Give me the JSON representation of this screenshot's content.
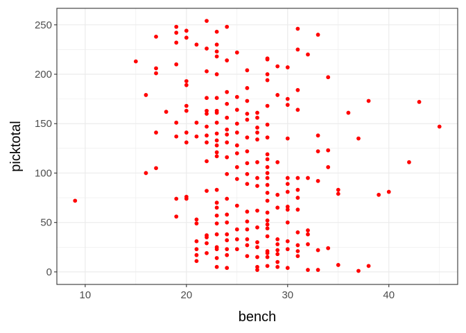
{
  "chart_data": {
    "type": "scatter",
    "xlabel": "bench",
    "ylabel": "picktotal",
    "xlim": [
      7.2,
      46.8
    ],
    "ylim": [
      -12.7,
      266.7
    ],
    "x_ticks": [
      10,
      20,
      30,
      40
    ],
    "y_ticks": [
      0,
      50,
      100,
      150,
      200,
      250
    ],
    "x_tick_labels": [
      "10",
      "20",
      "30",
      "40"
    ],
    "y_tick_labels": [
      "0",
      "50",
      "100",
      "150",
      "200",
      "250"
    ],
    "grid": true,
    "point_color": "#ff0000",
    "points": [
      [
        9,
        72
      ],
      [
        15,
        213
      ],
      [
        16,
        179
      ],
      [
        16,
        100
      ],
      [
        17,
        238
      ],
      [
        17,
        206
      ],
      [
        17,
        201
      ],
      [
        17,
        141
      ],
      [
        17,
        105
      ],
      [
        18,
        162
      ],
      [
        19,
        248
      ],
      [
        19,
        242
      ],
      [
        19,
        232
      ],
      [
        19,
        210
      ],
      [
        19,
        151
      ],
      [
        19,
        137
      ],
      [
        19,
        74
      ],
      [
        19,
        56
      ],
      [
        20,
        244
      ],
      [
        20,
        237
      ],
      [
        20,
        193
      ],
      [
        20,
        189
      ],
      [
        20,
        168
      ],
      [
        20,
        163
      ],
      [
        20,
        141
      ],
      [
        20,
        131
      ],
      [
        20,
        76
      ],
      [
        20,
        74
      ],
      [
        21,
        230
      ],
      [
        21,
        151
      ],
      [
        21,
        137
      ],
      [
        21,
        53
      ],
      [
        21,
        49
      ],
      [
        21,
        31
      ],
      [
        21,
        23
      ],
      [
        21,
        17
      ],
      [
        21,
        11
      ],
      [
        22,
        254
      ],
      [
        22,
        226
      ],
      [
        22,
        203
      ],
      [
        22,
        176
      ],
      [
        22,
        163
      ],
      [
        22,
        160
      ],
      [
        22,
        147
      ],
      [
        22,
        138
      ],
      [
        22,
        131
      ],
      [
        22,
        112
      ],
      [
        22,
        82
      ],
      [
        22,
        37
      ],
      [
        22,
        35
      ],
      [
        22,
        29
      ],
      [
        22,
        19
      ],
      [
        23,
        243
      ],
      [
        23,
        230
      ],
      [
        23,
        223
      ],
      [
        23,
        218
      ],
      [
        23,
        200
      ],
      [
        23,
        176
      ],
      [
        23,
        163
      ],
      [
        23,
        161
      ],
      [
        23,
        151
      ],
      [
        23,
        140
      ],
      [
        23,
        133
      ],
      [
        23,
        128
      ],
      [
        23,
        121
      ],
      [
        23,
        117
      ],
      [
        23,
        83
      ],
      [
        23,
        70
      ],
      [
        23,
        65
      ],
      [
        23,
        57
      ],
      [
        23,
        49
      ],
      [
        23,
        38
      ],
      [
        23,
        25
      ],
      [
        23,
        23
      ],
      [
        23,
        14
      ],
      [
        23,
        5
      ],
      [
        24,
        248
      ],
      [
        24,
        214
      ],
      [
        24,
        182
      ],
      [
        24,
        170
      ],
      [
        24,
        156
      ],
      [
        24,
        144
      ],
      [
        24,
        139
      ],
      [
        24,
        131
      ],
      [
        24,
        116
      ],
      [
        24,
        99
      ],
      [
        24,
        74
      ],
      [
        24,
        58
      ],
      [
        24,
        50
      ],
      [
        24,
        38
      ],
      [
        24,
        32
      ],
      [
        24,
        23
      ],
      [
        24,
        17
      ],
      [
        24,
        4
      ],
      [
        25,
        222
      ],
      [
        25,
        177
      ],
      [
        25,
        164
      ],
      [
        25,
        150
      ],
      [
        25,
        141
      ],
      [
        25,
        128
      ],
      [
        25,
        120
      ],
      [
        25,
        106
      ],
      [
        25,
        94
      ],
      [
        25,
        67
      ],
      [
        25,
        43
      ],
      [
        25,
        33
      ],
      [
        25,
        23
      ],
      [
        26,
        204
      ],
      [
        26,
        186
      ],
      [
        26,
        173
      ],
      [
        26,
        160
      ],
      [
        26,
        154
      ],
      [
        26,
        136
      ],
      [
        26,
        122
      ],
      [
        26,
        110
      ],
      [
        26,
        99
      ],
      [
        26,
        89
      ],
      [
        26,
        61
      ],
      [
        26,
        51
      ],
      [
        26,
        43
      ],
      [
        26,
        33
      ],
      [
        26,
        27
      ],
      [
        26,
        16
      ],
      [
        27,
        161
      ],
      [
        27,
        156
      ],
      [
        27,
        146
      ],
      [
        27,
        141
      ],
      [
        27,
        134
      ],
      [
        27,
        111
      ],
      [
        27,
        95
      ],
      [
        27,
        87
      ],
      [
        27,
        62
      ],
      [
        27,
        45
      ],
      [
        27,
        30
      ],
      [
        27,
        25
      ],
      [
        27,
        15
      ],
      [
        27,
        5
      ],
      [
        27,
        2
      ],
      [
        28,
        216
      ],
      [
        28,
        215
      ],
      [
        28,
        200
      ],
      [
        28,
        194
      ],
      [
        28,
        168
      ],
      [
        28,
        149
      ],
      [
        28,
        136
      ],
      [
        28,
        119
      ],
      [
        28,
        114
      ],
      [
        28,
        106
      ],
      [
        28,
        100
      ],
      [
        28,
        95
      ],
      [
        28,
        88
      ],
      [
        28,
        80
      ],
      [
        28,
        72
      ],
      [
        28,
        60
      ],
      [
        28,
        52
      ],
      [
        28,
        48
      ],
      [
        28,
        44
      ],
      [
        28,
        36
      ],
      [
        28,
        21
      ],
      [
        28,
        19
      ],
      [
        28,
        15
      ],
      [
        28,
        6
      ],
      [
        29,
        208
      ],
      [
        29,
        179
      ],
      [
        29,
        111
      ],
      [
        29,
        78
      ],
      [
        29,
        65
      ],
      [
        29,
        33
      ],
      [
        29,
        28
      ],
      [
        29,
        22
      ],
      [
        29,
        18
      ],
      [
        29,
        10
      ],
      [
        29,
        5
      ],
      [
        30,
        207
      ],
      [
        30,
        175
      ],
      [
        30,
        169
      ],
      [
        30,
        135
      ],
      [
        30,
        95
      ],
      [
        30,
        89
      ],
      [
        30,
        81
      ],
      [
        30,
        66
      ],
      [
        30,
        63
      ],
      [
        30,
        50
      ],
      [
        30,
        31
      ],
      [
        30,
        23
      ],
      [
        30,
        4
      ],
      [
        31,
        246
      ],
      [
        31,
        225
      ],
      [
        31,
        184
      ],
      [
        31,
        164
      ],
      [
        31,
        95
      ],
      [
        31,
        83
      ],
      [
        31,
        75
      ],
      [
        31,
        63
      ],
      [
        31,
        40
      ],
      [
        31,
        27
      ],
      [
        31,
        21
      ],
      [
        31,
        16
      ],
      [
        32,
        220
      ],
      [
        32,
        95
      ],
      [
        32,
        42
      ],
      [
        32,
        38
      ],
      [
        32,
        28
      ],
      [
        32,
        2
      ],
      [
        33,
        240
      ],
      [
        33,
        138
      ],
      [
        33,
        122
      ],
      [
        33,
        92
      ],
      [
        33,
        22
      ],
      [
        33,
        2
      ],
      [
        34,
        197
      ],
      [
        34,
        123
      ],
      [
        34,
        106
      ],
      [
        34,
        24
      ],
      [
        35,
        83
      ],
      [
        35,
        79
      ],
      [
        35,
        7
      ],
      [
        36,
        161
      ],
      [
        37,
        135
      ],
      [
        37,
        1
      ],
      [
        38,
        173
      ],
      [
        38,
        6
      ],
      [
        39,
        78
      ],
      [
        40,
        81
      ],
      [
        42,
        111
      ],
      [
        43,
        172
      ],
      [
        45,
        147
      ]
    ]
  }
}
